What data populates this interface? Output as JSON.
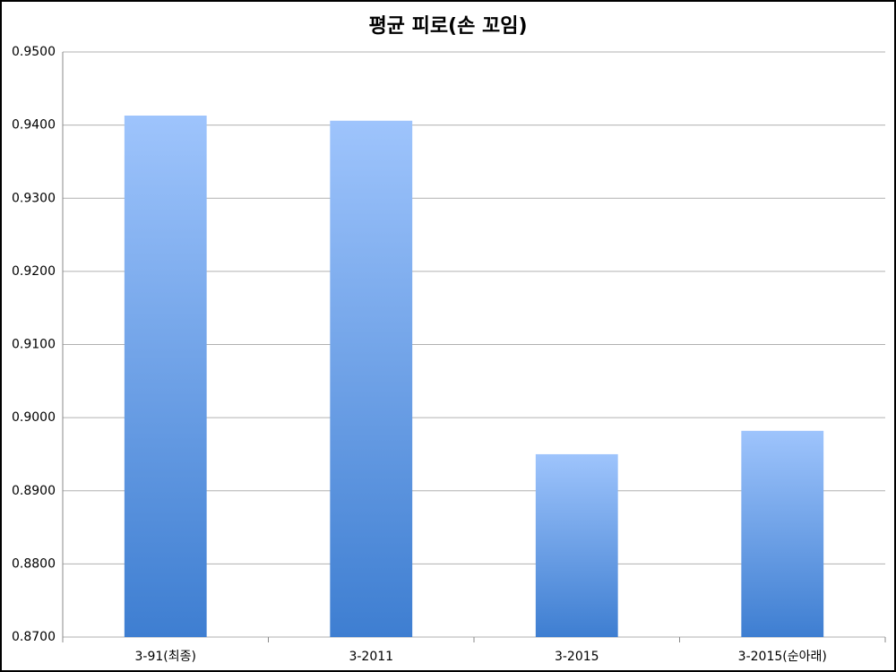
{
  "chart_data": {
    "type": "bar",
    "title": "평균 피로(손 꼬임)",
    "categories": [
      "3-91(최종)",
      "3-2011",
      "3-2015",
      "3-2015(순아래)"
    ],
    "values": [
      0.9413,
      0.9406,
      0.895,
      0.8982
    ],
    "color": "#3e7ed1",
    "gradient_to": "#9ec4fc",
    "ylim": [
      0.87,
      0.95
    ],
    "yticks": [
      {
        "value": 0.87,
        "label": "0.8700"
      },
      {
        "value": 0.88,
        "label": "0.8800"
      },
      {
        "value": 0.89,
        "label": "0.8900"
      },
      {
        "value": 0.9,
        "label": "0.9000"
      },
      {
        "value": 0.91,
        "label": "0.9100"
      },
      {
        "value": 0.92,
        "label": "0.9200"
      },
      {
        "value": 0.93,
        "label": "0.9300"
      },
      {
        "value": 0.94,
        "label": "0.9400"
      },
      {
        "value": 0.95,
        "label": "0.9500"
      }
    ],
    "grid": true
  }
}
